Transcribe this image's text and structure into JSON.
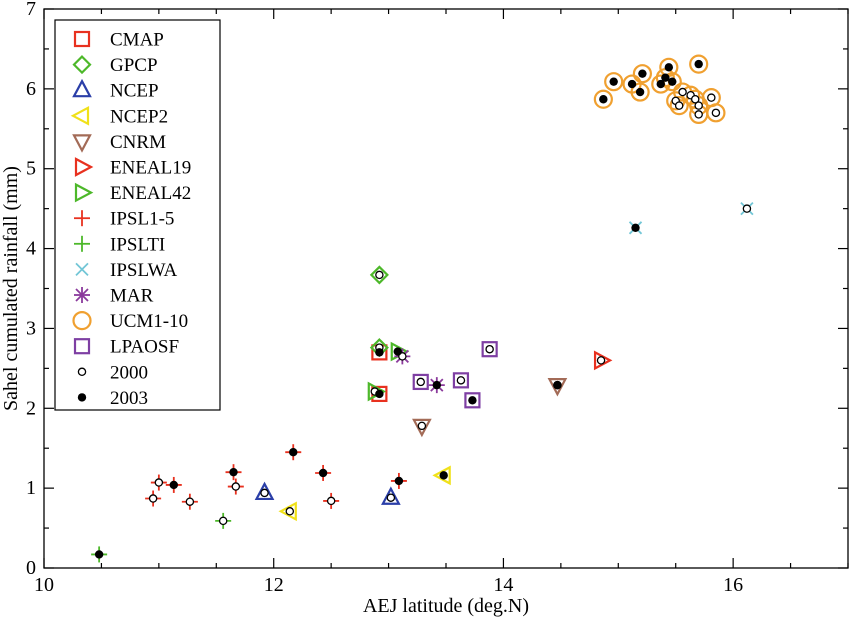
{
  "chart_data": {
    "type": "scatter",
    "xlabel": "AEJ latitude (deg.N)",
    "ylabel": "Sahel cumulated rainfall (mm)",
    "xlim": [
      10,
      17
    ],
    "ylim": [
      0,
      7
    ],
    "xticks": [
      10,
      12,
      14,
      16
    ],
    "yticks": [
      0,
      1,
      2,
      3,
      4,
      5,
      6,
      7
    ],
    "xtick_labels": [
      "10",
      "12",
      "14",
      "16"
    ],
    "ytick_labels": [
      "0",
      "1",
      "2",
      "3",
      "4",
      "5",
      "6",
      "7"
    ],
    "grid": false,
    "legend_position": "top-left",
    "series": [
      {
        "name": "CMAP",
        "marker": "square",
        "color": "#e8311f",
        "points": [
          [
            12.92,
            2.7
          ],
          [
            12.92,
            2.18
          ]
        ]
      },
      {
        "name": "GPCP",
        "marker": "diamond",
        "color": "#4db82a",
        "points": [
          [
            12.92,
            3.67
          ],
          [
            12.92,
            2.76
          ]
        ]
      },
      {
        "name": "NCEP",
        "marker": "triangle-up",
        "color": "#2b3fa8",
        "points": [
          [
            11.92,
            0.94
          ],
          [
            13.02,
            0.88
          ]
        ]
      },
      {
        "name": "NCEP2",
        "marker": "triangle-left",
        "color": "#f0e11a",
        "points": [
          [
            12.14,
            0.71
          ],
          [
            13.48,
            1.16
          ]
        ]
      },
      {
        "name": "CNRM",
        "marker": "triangle-down",
        "color": "#a36b57",
        "points": [
          [
            13.29,
            1.78
          ],
          [
            14.47,
            2.29
          ]
        ]
      },
      {
        "name": "ENEAL19",
        "marker": "triangle-right",
        "color": "#e8311f",
        "points": [
          [
            14.85,
            2.6
          ]
        ]
      },
      {
        "name": "ENEAL42",
        "marker": "triangle-right",
        "color": "#4db82a",
        "points": [
          [
            12.88,
            2.21
          ],
          [
            13.08,
            2.71
          ]
        ]
      },
      {
        "name": "IPSL1-5",
        "marker": "plus",
        "color": "#e8311f",
        "points": [
          [
            10.95,
            0.87
          ],
          [
            11.0,
            1.07
          ],
          [
            11.13,
            1.04
          ],
          [
            11.27,
            0.83
          ],
          [
            11.65,
            1.2
          ],
          [
            11.67,
            1.02
          ],
          [
            12.17,
            1.45
          ],
          [
            12.43,
            1.19
          ],
          [
            12.5,
            0.84
          ],
          [
            13.09,
            1.09
          ]
        ]
      },
      {
        "name": "IPSLTI",
        "marker": "plus",
        "color": "#4db82a",
        "points": [
          [
            10.48,
            0.17
          ],
          [
            11.56,
            0.59
          ]
        ]
      },
      {
        "name": "IPSLWA",
        "marker": "x",
        "color": "#72c6d6",
        "points": [
          [
            15.15,
            4.26
          ],
          [
            16.12,
            4.5
          ]
        ]
      },
      {
        "name": "MAR",
        "marker": "asterisk",
        "color": "#8b3a9c",
        "points": [
          [
            13.12,
            2.65
          ],
          [
            13.42,
            2.29
          ]
        ]
      },
      {
        "name": "UCM1-10",
        "marker": "circle",
        "color": "#f0a030",
        "points": [
          [
            14.87,
            5.87
          ],
          [
            14.96,
            6.09
          ],
          [
            15.12,
            6.06
          ],
          [
            15.19,
            5.96
          ],
          [
            15.21,
            6.19
          ],
          [
            15.37,
            6.06
          ],
          [
            15.41,
            6.14
          ],
          [
            15.44,
            6.27
          ],
          [
            15.47,
            6.09
          ],
          [
            15.5,
            5.85
          ],
          [
            15.53,
            5.79
          ],
          [
            15.56,
            5.96
          ],
          [
            15.63,
            5.92
          ],
          [
            15.67,
            5.87
          ],
          [
            15.7,
            5.79
          ],
          [
            15.7,
            5.68
          ],
          [
            15.7,
            6.31
          ],
          [
            15.81,
            5.89
          ],
          [
            15.85,
            5.7
          ]
        ]
      },
      {
        "name": "LPAOSF",
        "marker": "square",
        "color": "#7e3fa3",
        "points": [
          [
            13.28,
            2.33
          ],
          [
            13.63,
            2.35
          ],
          [
            13.73,
            2.1
          ],
          [
            13.88,
            2.74
          ]
        ]
      },
      {
        "name": "2000",
        "marker": "open-dot",
        "color": "#000000",
        "points": [
          [
            10.95,
            0.87
          ],
          [
            11.0,
            1.07
          ],
          [
            11.27,
            0.83
          ],
          [
            11.56,
            0.59
          ],
          [
            11.67,
            1.02
          ],
          [
            11.92,
            0.94
          ],
          [
            12.14,
            0.71
          ],
          [
            12.5,
            0.84
          ],
          [
            12.88,
            2.21
          ],
          [
            12.92,
            2.76
          ],
          [
            12.92,
            3.67
          ],
          [
            13.02,
            0.88
          ],
          [
            13.12,
            2.65
          ],
          [
            13.28,
            2.33
          ],
          [
            13.29,
            1.78
          ],
          [
            13.63,
            2.35
          ],
          [
            13.88,
            2.74
          ],
          [
            14.47,
            2.29
          ],
          [
            14.85,
            2.6
          ],
          [
            15.5,
            5.85
          ],
          [
            15.53,
            5.79
          ],
          [
            15.56,
            5.96
          ],
          [
            15.63,
            5.92
          ],
          [
            15.67,
            5.87
          ],
          [
            15.7,
            5.79
          ],
          [
            15.7,
            5.68
          ],
          [
            15.81,
            5.89
          ],
          [
            15.85,
            5.7
          ],
          [
            16.12,
            4.5
          ]
        ]
      },
      {
        "name": "2003",
        "marker": "filled-dot",
        "color": "#000000",
        "points": [
          [
            10.48,
            0.17
          ],
          [
            11.13,
            1.04
          ],
          [
            11.65,
            1.2
          ],
          [
            12.17,
            1.45
          ],
          [
            12.43,
            1.19
          ],
          [
            12.92,
            2.7
          ],
          [
            12.92,
            2.18
          ],
          [
            13.08,
            2.71
          ],
          [
            13.09,
            1.09
          ],
          [
            13.42,
            2.29
          ],
          [
            13.48,
            1.16
          ],
          [
            13.73,
            2.1
          ],
          [
            14.47,
            2.29
          ],
          [
            14.87,
            5.87
          ],
          [
            14.96,
            6.09
          ],
          [
            15.12,
            6.06
          ],
          [
            15.15,
            4.26
          ],
          [
            15.19,
            5.96
          ],
          [
            15.21,
            6.19
          ],
          [
            15.37,
            6.06
          ],
          [
            15.41,
            6.14
          ],
          [
            15.44,
            6.27
          ],
          [
            15.47,
            6.09
          ],
          [
            15.7,
            6.31
          ]
        ]
      }
    ]
  }
}
